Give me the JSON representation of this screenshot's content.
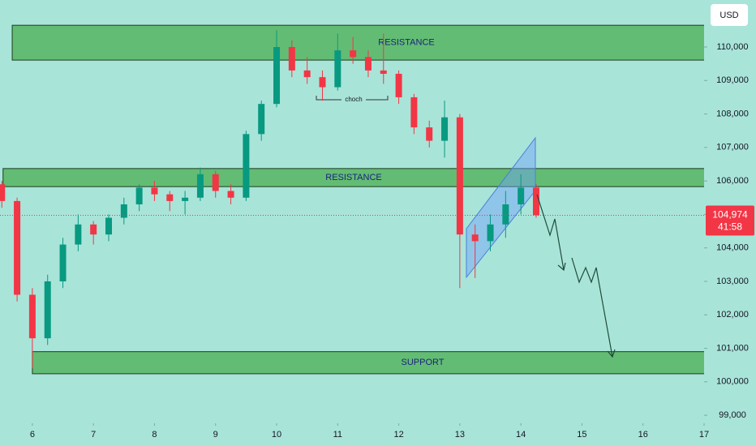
{
  "chart_data": {
    "type": "candlestick",
    "currency": "USD",
    "x": [
      5.5,
      5.75,
      6.0,
      6.25,
      6.5,
      6.75,
      7.0,
      7.25,
      7.5,
      7.75,
      8.0,
      8.25,
      8.5,
      8.75,
      9.0,
      9.25,
      9.5,
      9.75,
      10.0,
      10.25,
      10.5,
      10.75,
      11.0,
      11.25,
      11.5,
      11.75,
      12.0,
      12.25,
      12.5,
      12.75,
      13.0,
      13.25,
      13.5,
      13.75,
      14.0,
      14.25
    ],
    "open": [
      105900,
      105400,
      102600,
      101300,
      103000,
      104100,
      104700,
      104400,
      104900,
      105300,
      105800,
      105600,
      105400,
      105500,
      106200,
      105700,
      105500,
      107400,
      108300,
      110000,
      109300,
      109100,
      108800,
      109900,
      109700,
      109300,
      109200,
      108500,
      107600,
      107200,
      107900,
      104400,
      104200,
      104700,
      105300,
      105800
    ],
    "high": [
      106000,
      105500,
      102800,
      103200,
      104300,
      105000,
      104800,
      105000,
      105500,
      105900,
      106000,
      105700,
      105700,
      106400,
      106300,
      105900,
      107500,
      108400,
      110500,
      110200,
      109700,
      109300,
      110400,
      110300,
      109900,
      110400,
      109300,
      108600,
      107800,
      108400,
      108000,
      104700,
      105000,
      105700,
      106200,
      105900
    ],
    "low": [
      105200,
      102400,
      100400,
      101100,
      102800,
      103900,
      104100,
      104200,
      104700,
      105100,
      105400,
      105100,
      105000,
      105400,
      105500,
      105300,
      105400,
      107200,
      108200,
      109100,
      108900,
      108400,
      108700,
      109500,
      109100,
      108900,
      108300,
      107400,
      107000,
      106700,
      102800,
      103100,
      103900,
      104300,
      105000,
      104900
    ],
    "close": [
      105400,
      102600,
      101300,
      103000,
      104100,
      104700,
      104400,
      104900,
      105300,
      105800,
      105600,
      105400,
      105500,
      106200,
      105700,
      105500,
      107400,
      108300,
      110000,
      109300,
      109100,
      108800,
      109900,
      109700,
      109300,
      109200,
      108500,
      107600,
      107200,
      107900,
      104400,
      104200,
      104700,
      105300,
      105800,
      104974
    ],
    "up_color": "#089981",
    "down_color": "#f23645",
    "xlim": [
      5.47,
      17.0
    ],
    "xticks": [
      6,
      7,
      8,
      9,
      10,
      11,
      12,
      13,
      14,
      15,
      16,
      17
    ],
    "ylim": [
      98760,
      111405
    ],
    "yticks": [
      {
        "value": 99000,
        "label": "99,000"
      },
      {
        "value": 100000,
        "label": "100,000"
      },
      {
        "value": 101000,
        "label": "101,000"
      },
      {
        "value": 102000,
        "label": "102,000"
      },
      {
        "value": 103000,
        "label": "103,000"
      },
      {
        "value": 104000,
        "label": "104,000"
      },
      {
        "value": 105000,
        "label": "105,000"
      },
      {
        "value": 106000,
        "label": "106,000"
      },
      {
        "value": 107000,
        "label": "107,000"
      },
      {
        "value": 108000,
        "label": "108,000"
      },
      {
        "value": 109000,
        "label": "109,000"
      },
      {
        "value": 110000,
        "label": "110,000"
      }
    ],
    "last_price": {
      "value": 104974,
      "label": "104,974"
    },
    "countdown": "41:58",
    "zones": [
      {
        "label": "RESISTANCE",
        "low": 109610,
        "high": 110650,
        "start": 5.67
      },
      {
        "label": "RESISTANCE",
        "low": 105830,
        "high": 106370,
        "start": 5.52
      },
      {
        "label": "SUPPORT",
        "low": 100240,
        "high": 100900,
        "start": 6.0
      }
    ],
    "choch": "choch"
  }
}
